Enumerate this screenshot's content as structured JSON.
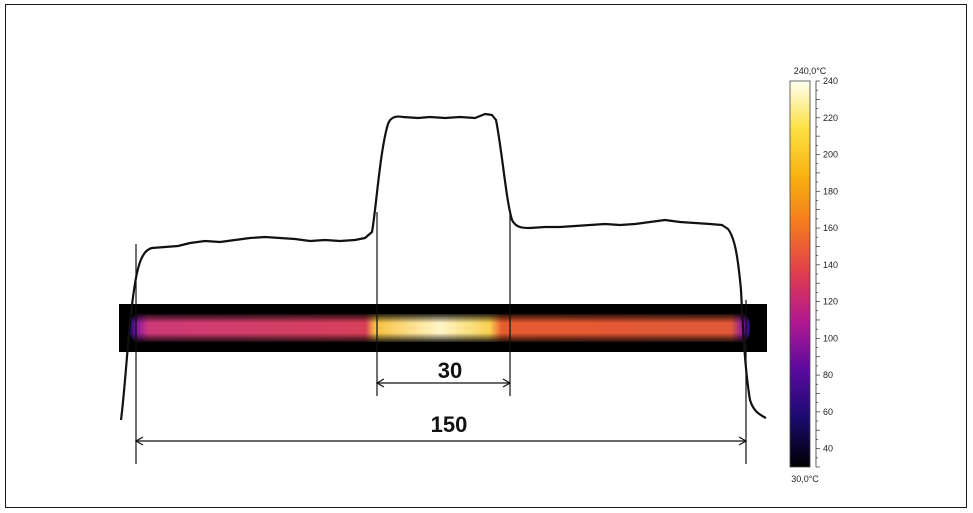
{
  "dimensions": {
    "segment_width": "30",
    "total_width": "150"
  },
  "colorbar": {
    "max_label": "240,0°C",
    "min_label": "30,0°C",
    "min": 30,
    "max": 240,
    "ticks": [
      40,
      60,
      80,
      100,
      120,
      140,
      160,
      180,
      200,
      220,
      240
    ],
    "colors": [
      "#000000",
      "#1a0a6e",
      "#5a0aa0",
      "#b01890",
      "#e03c50",
      "#f47820",
      "#f8b010",
      "#fce040",
      "#fffff0"
    ]
  }
}
